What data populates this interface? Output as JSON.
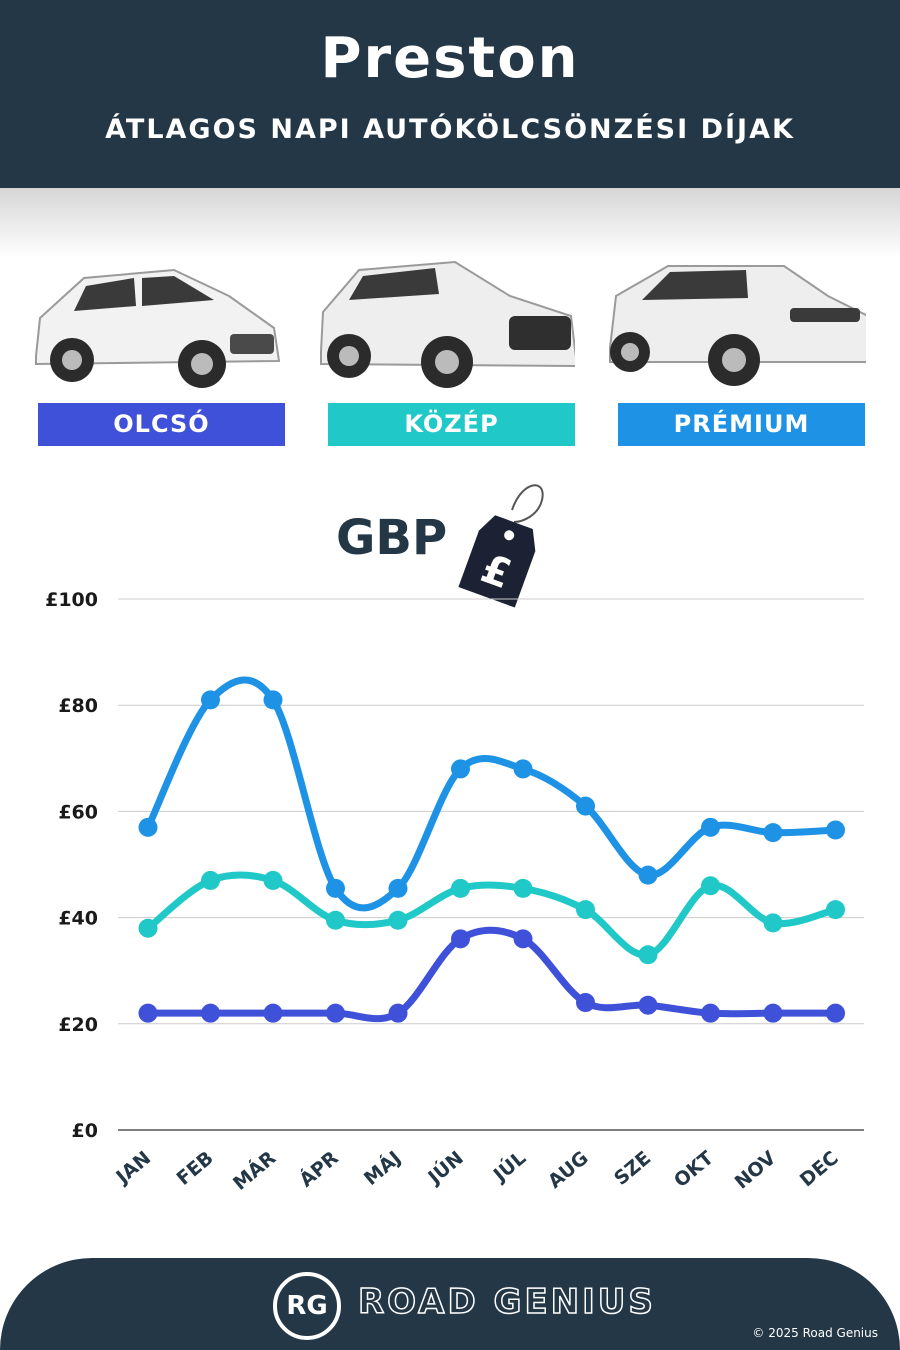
{
  "header": {
    "city": "Preston",
    "subtitle": "ÁTLAGOS NAPI AUTÓKÖLCSÖNZÉSI DÍJAK"
  },
  "categories": [
    {
      "label": "OLCSÓ",
      "color": "#3f51d8",
      "icon": "car-hatchback-icon"
    },
    {
      "label": "KÖZÉP",
      "color": "#20c9c7",
      "icon": "car-suv-icon"
    },
    {
      "label": "PRÉMIUM",
      "color": "#1e93e6",
      "icon": "car-luxury-suv-icon"
    }
  ],
  "currency": {
    "label": "GBP",
    "symbol": "£"
  },
  "chart_data": {
    "type": "line",
    "categories": [
      "JAN",
      "FEB",
      "MÁR",
      "ÁPR",
      "MÁJ",
      "JÚN",
      "JÚL",
      "AUG",
      "SZE",
      "OKT",
      "NOV",
      "DEC"
    ],
    "series": [
      {
        "name": "OLCSÓ",
        "color": "#3f51d8",
        "values": [
          22,
          22,
          22,
          22,
          22,
          36,
          36,
          24,
          23.5,
          22,
          22,
          22
        ]
      },
      {
        "name": "KÖZÉP",
        "color": "#20c9c7",
        "values": [
          38,
          47,
          47,
          39.5,
          39.5,
          45.5,
          45.5,
          41.5,
          33,
          46,
          39,
          41.5
        ]
      },
      {
        "name": "PRÉMIUM",
        "color": "#1e93e6",
        "values": [
          57,
          81,
          81,
          45.5,
          45.5,
          68,
          68,
          61,
          48,
          57,
          56,
          56.5
        ]
      }
    ],
    "yticks": [
      "£0",
      "£20",
      "£40",
      "£60",
      "£80",
      "£100"
    ],
    "ylim": [
      0,
      100
    ],
    "grid": true
  },
  "footer": {
    "logo": "RG",
    "brand": "ROAD GENIUS",
    "copyright": "© 2025 Road Genius"
  }
}
